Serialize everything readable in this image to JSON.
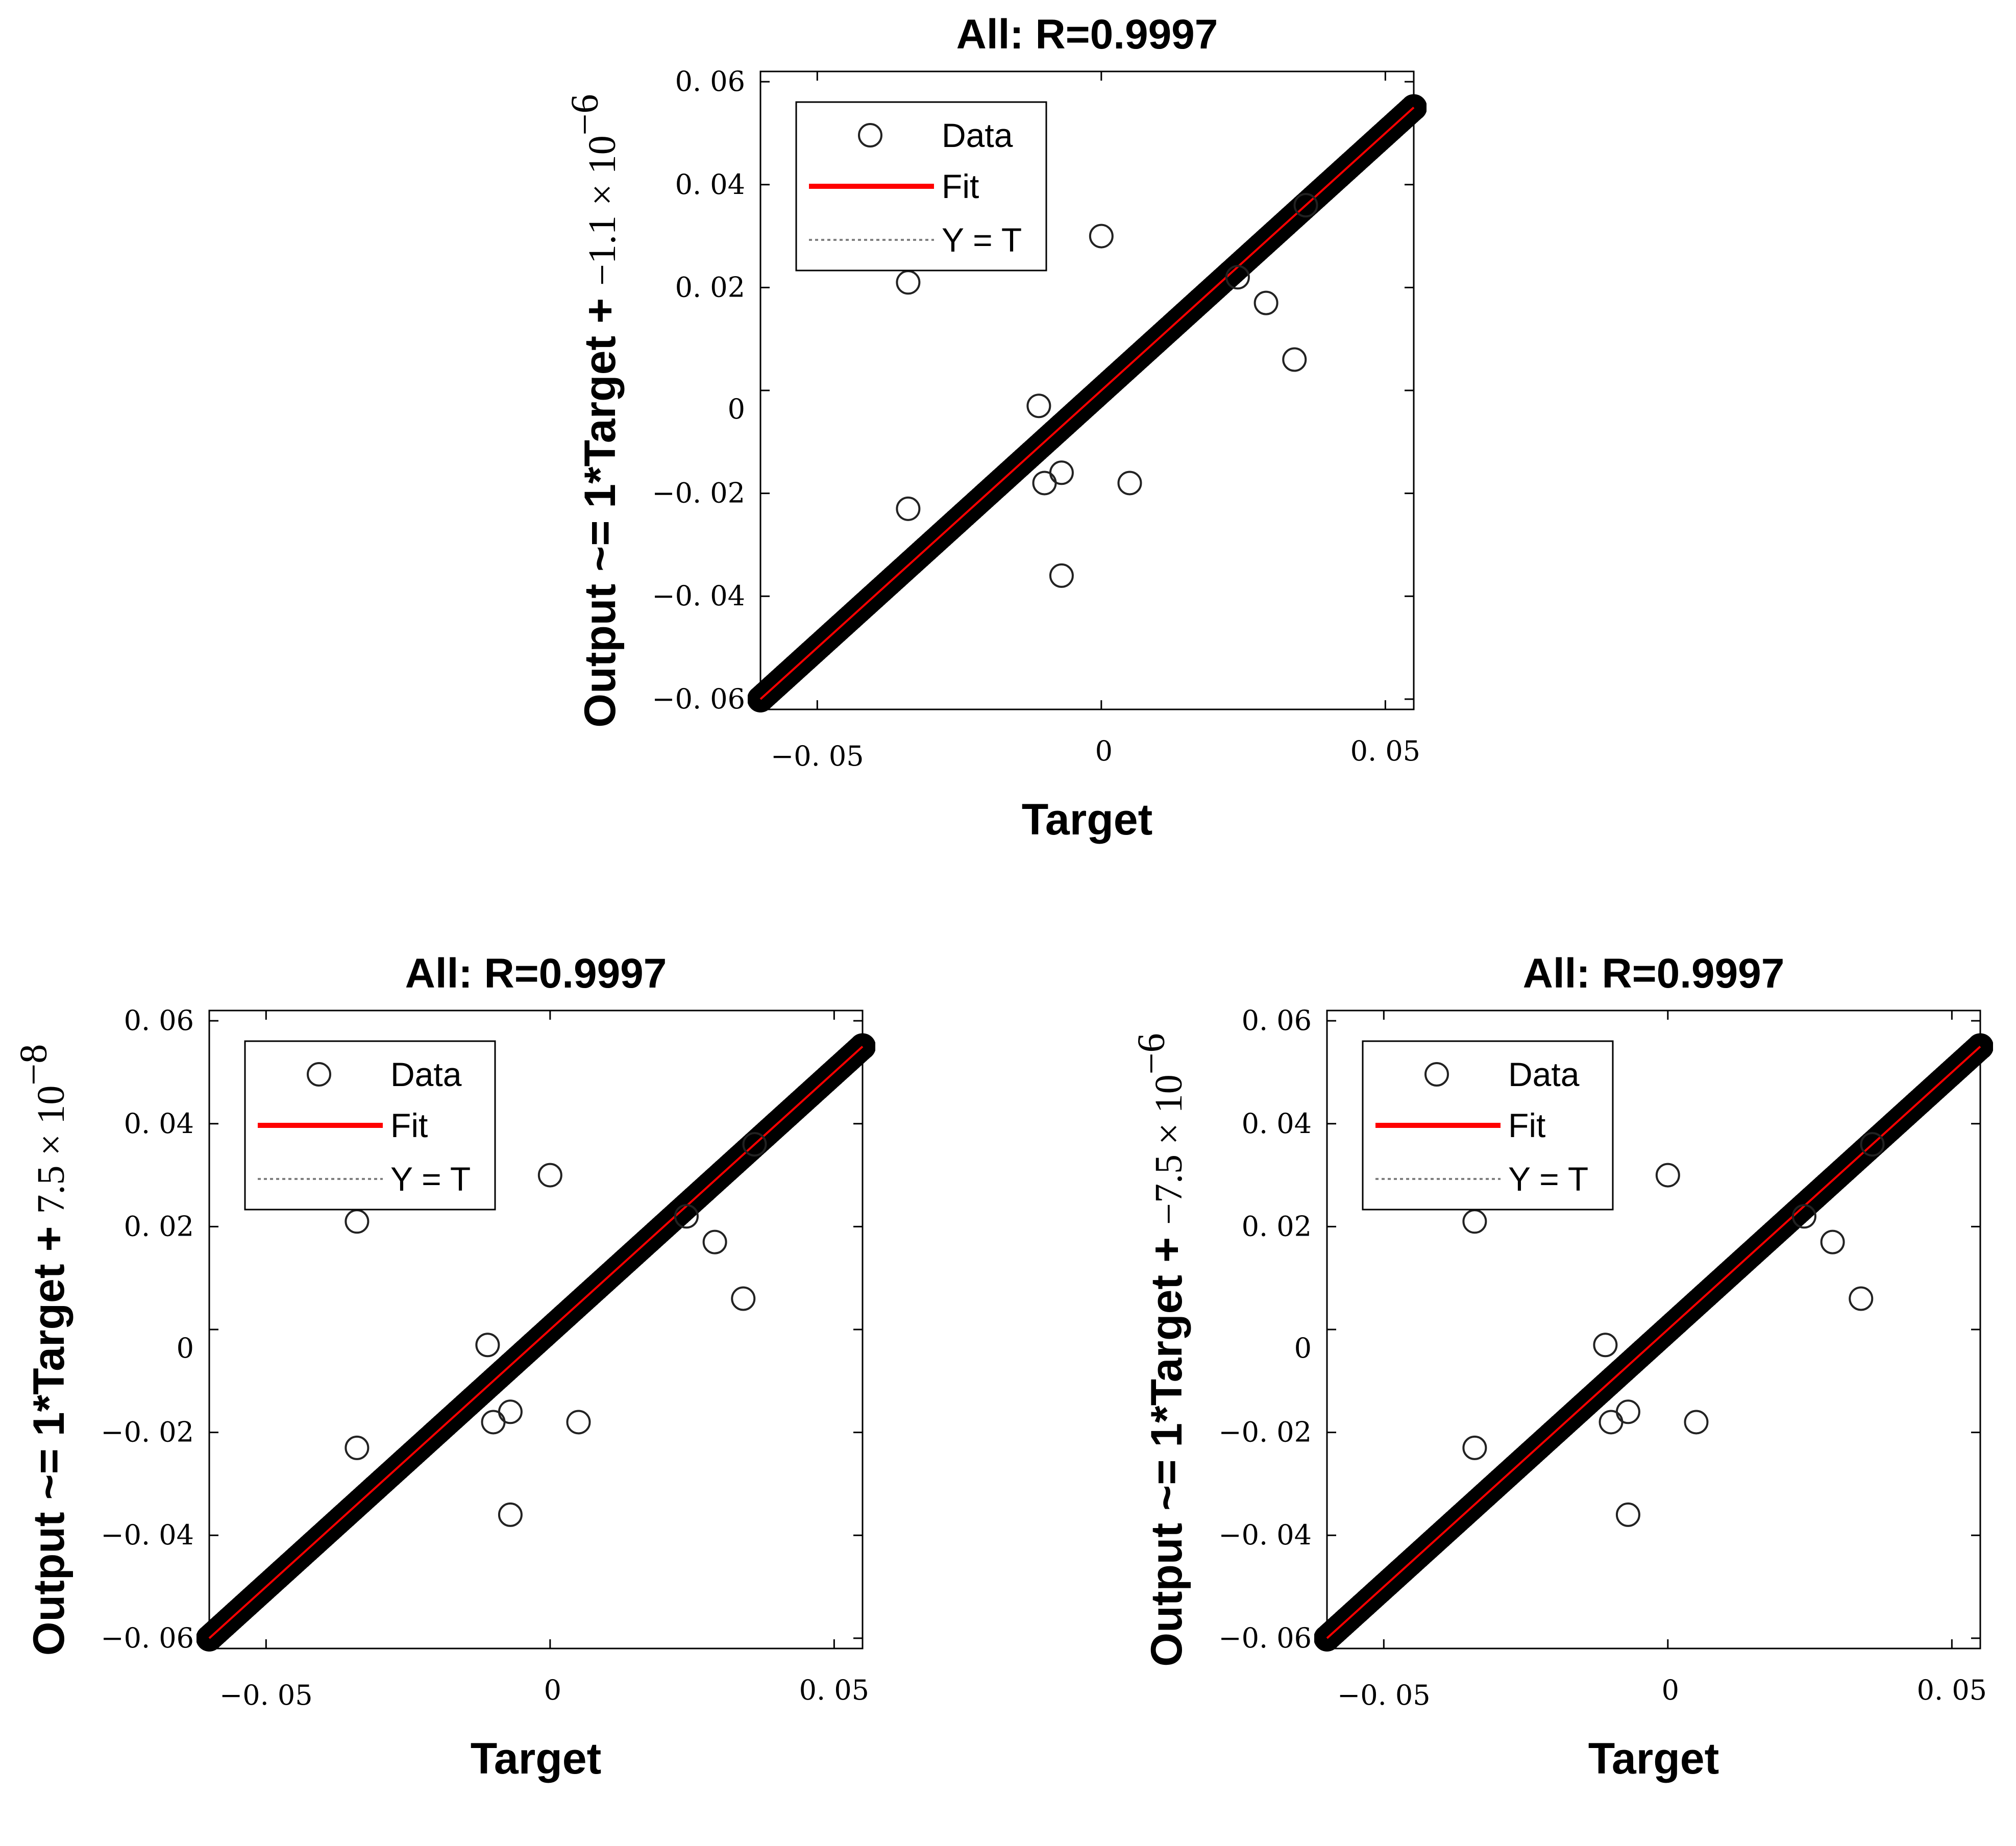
{
  "chart_data": [
    {
      "type": "scatter",
      "title": "All: R=0.9997",
      "xlabel": "Target",
      "ylabel": "Output ~= 1*Target + −1.1 × 10⁻⁶",
      "ylabel_main": "Output ~= 1*Target + ",
      "ylabel_coef": "−1.1 × 10",
      "ylabel_exp": "−6",
      "xlim": [
        -0.06,
        0.055
      ],
      "ylim": [
        -0.062,
        0.062
      ],
      "xticks": [
        -0.05,
        0,
        0.05
      ],
      "xtick_labels": [
        "−0. 05",
        "0",
        "0. 05"
      ],
      "yticks": [
        -0.06,
        -0.04,
        -0.02,
        0,
        0.02,
        0.04,
        0.06
      ],
      "ytick_labels": [
        "−0. 06",
        "−0. 04",
        "−0. 02",
        "0",
        "0. 02",
        "0. 04",
        "0. 06"
      ],
      "legend": [
        "Data",
        "Fit",
        "Y = T"
      ],
      "legend_position": "top-left",
      "fit": {
        "slope": 1,
        "intercept": -1.1e-06
      },
      "colors": {
        "data": "#000000",
        "fit": "#ff0000",
        "identity": "#808080"
      },
      "diagonal_range": [
        -0.06,
        0.055
      ],
      "outliers": [
        {
          "x": -0.034,
          "y": 0.021
        },
        {
          "x": 0.0,
          "y": 0.03
        },
        {
          "x": 0.029,
          "y": 0.017
        },
        {
          "x": 0.034,
          "y": 0.006
        },
        {
          "x": -0.011,
          "y": -0.003
        },
        {
          "x": -0.034,
          "y": -0.023
        },
        {
          "x": -0.01,
          "y": -0.018
        },
        {
          "x": -0.007,
          "y": -0.016
        },
        {
          "x": 0.005,
          "y": -0.018
        },
        {
          "x": -0.007,
          "y": -0.036
        },
        {
          "x": 0.024,
          "y": 0.022
        },
        {
          "x": 0.036,
          "y": 0.036
        }
      ]
    },
    {
      "type": "scatter",
      "title": "All: R=0.9997",
      "xlabel": "Target",
      "ylabel": "Output ~= 1*Target +  7.5 × 10⁻⁸",
      "ylabel_main": "Output ~= 1*Target + ",
      "ylabel_coef": " 7.5 × 10",
      "ylabel_exp": "−8",
      "xlim": [
        -0.06,
        0.055
      ],
      "ylim": [
        -0.062,
        0.062
      ],
      "xticks": [
        -0.05,
        0,
        0.05
      ],
      "xtick_labels": [
        "−0. 05",
        "0",
        "0. 05"
      ],
      "yticks": [
        -0.06,
        -0.04,
        -0.02,
        0,
        0.02,
        0.04,
        0.06
      ],
      "ytick_labels": [
        "−0. 06",
        "−0. 04",
        "−0. 02",
        "0",
        "0. 02",
        "0. 04",
        "0. 06"
      ],
      "legend": [
        "Data",
        "Fit",
        "Y = T"
      ],
      "legend_position": "top-left",
      "fit": {
        "slope": 1,
        "intercept": 7.5e-08
      },
      "colors": {
        "data": "#000000",
        "fit": "#ff0000",
        "identity": "#808080"
      },
      "diagonal_range": [
        -0.06,
        0.055
      ],
      "outliers": [
        {
          "x": -0.034,
          "y": 0.021
        },
        {
          "x": 0.0,
          "y": 0.03
        },
        {
          "x": 0.029,
          "y": 0.017
        },
        {
          "x": 0.034,
          "y": 0.006
        },
        {
          "x": -0.011,
          "y": -0.003
        },
        {
          "x": -0.034,
          "y": -0.023
        },
        {
          "x": -0.01,
          "y": -0.018
        },
        {
          "x": -0.007,
          "y": -0.016
        },
        {
          "x": 0.005,
          "y": -0.018
        },
        {
          "x": -0.007,
          "y": -0.036
        },
        {
          "x": 0.024,
          "y": 0.022
        },
        {
          "x": 0.036,
          "y": 0.036
        }
      ]
    },
    {
      "type": "scatter",
      "title": "All: R=0.9997",
      "xlabel": "Target",
      "ylabel": "Output ~= 1*Target + −7.5 × 10⁻⁶",
      "ylabel_main": "Output ~= 1*Target + ",
      "ylabel_coef": "−7.5 × 10",
      "ylabel_exp": "−6",
      "xlim": [
        -0.06,
        0.055
      ],
      "ylim": [
        -0.062,
        0.062
      ],
      "xticks": [
        -0.05,
        0,
        0.05
      ],
      "xtick_labels": [
        "−0. 05",
        "0",
        "0. 05"
      ],
      "yticks": [
        -0.06,
        -0.04,
        -0.02,
        0,
        0.02,
        0.04,
        0.06
      ],
      "ytick_labels": [
        "−0. 06",
        "−0. 04",
        "−0. 02",
        "0",
        "0. 02",
        "0. 04",
        "0. 06"
      ],
      "legend": [
        "Data",
        "Fit",
        "Y = T"
      ],
      "legend_position": "top-left",
      "fit": {
        "slope": 1,
        "intercept": -7.5e-06
      },
      "colors": {
        "data": "#000000",
        "fit": "#ff0000",
        "identity": "#808080"
      },
      "diagonal_range": [
        -0.06,
        0.055
      ],
      "outliers": [
        {
          "x": -0.034,
          "y": 0.021
        },
        {
          "x": 0.0,
          "y": 0.03
        },
        {
          "x": 0.029,
          "y": 0.017
        },
        {
          "x": 0.034,
          "y": 0.006
        },
        {
          "x": -0.011,
          "y": -0.003
        },
        {
          "x": -0.034,
          "y": -0.023
        },
        {
          "x": -0.01,
          "y": -0.018
        },
        {
          "x": -0.007,
          "y": -0.016
        },
        {
          "x": 0.005,
          "y": -0.018
        },
        {
          "x": -0.007,
          "y": -0.036
        },
        {
          "x": 0.024,
          "y": 0.022
        },
        {
          "x": 0.036,
          "y": 0.036
        }
      ]
    }
  ]
}
